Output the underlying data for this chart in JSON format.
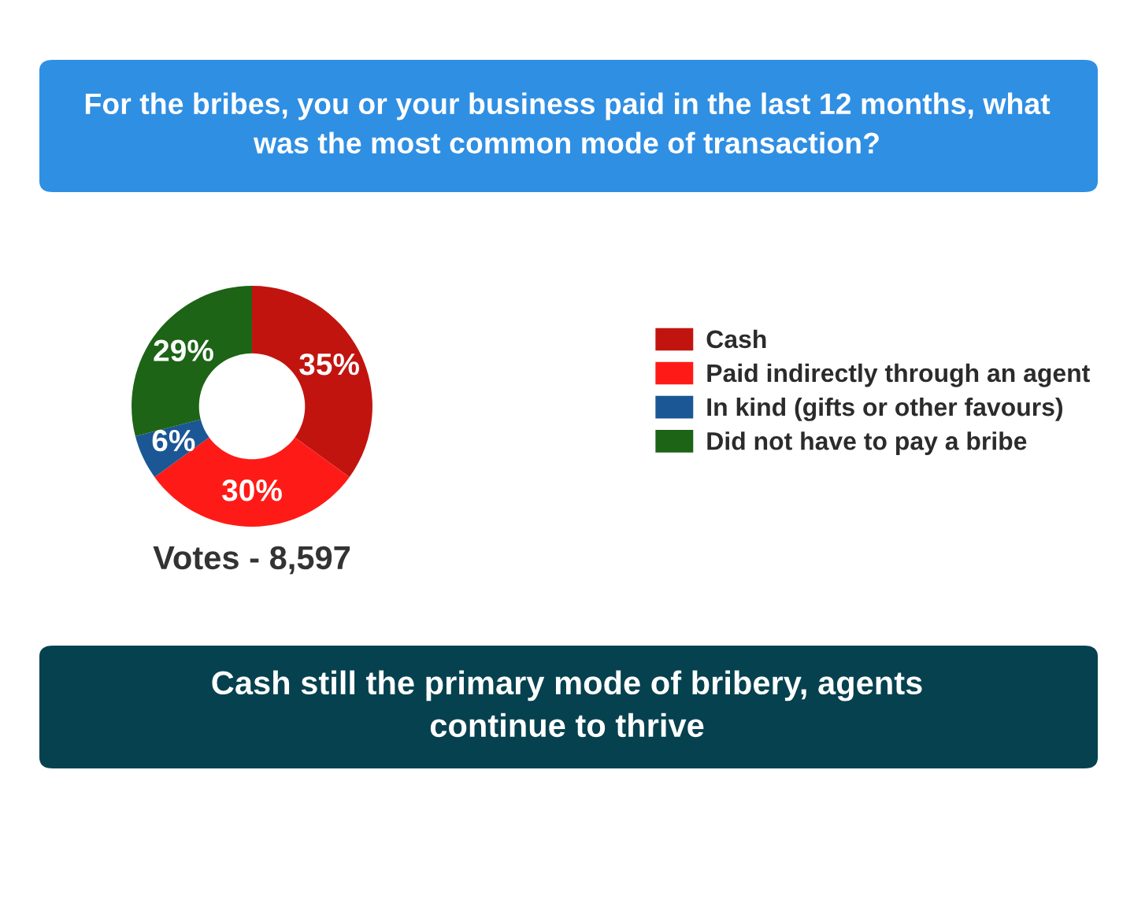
{
  "chart_data": {
    "type": "donut",
    "title": "For the bribes, you or your business paid in the last 12 months, what was the most common mode of transaction?",
    "categories": [
      "Cash",
      "Paid indirectly through an agent",
      "In kind (gifts or other favours)",
      "Did not have to pay a bribe"
    ],
    "values": [
      35,
      30,
      6,
      29
    ],
    "colors": [
      "#c2140f",
      "#fe1b17",
      "#1b5795",
      "#1d6416"
    ],
    "value_labels": [
      "35%",
      "30%",
      "6%",
      "29%"
    ],
    "legend": "right",
    "annotations": [
      "Votes - 8,597",
      "Cash still the primary mode of bribery, agents continue to thrive"
    ]
  }
}
